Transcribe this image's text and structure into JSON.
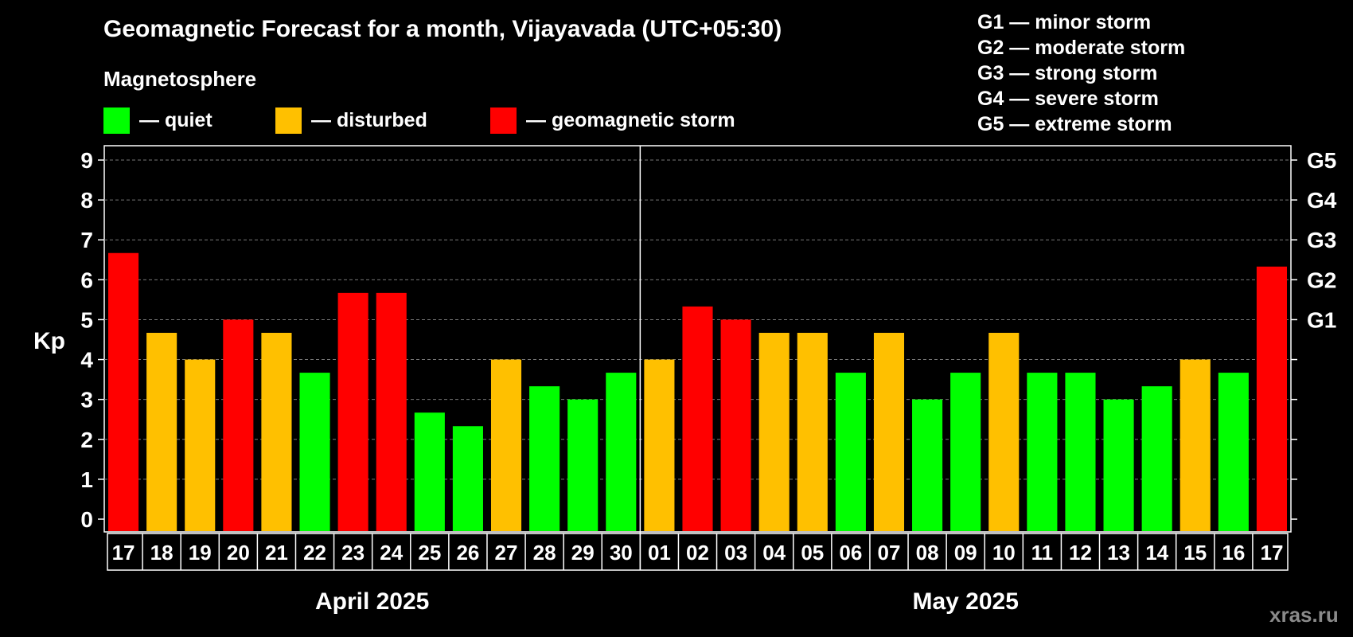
{
  "header": {
    "title": "Geomagnetic Forecast for a month, Vijayavada (UTC+05:30)",
    "subtitle": "Magnetosphere"
  },
  "legend": [
    {
      "label": "— quiet",
      "color": "#00ff00"
    },
    {
      "label": "— disturbed",
      "color": "#ffc000"
    },
    {
      "label": "— geomagnetic storm",
      "color": "#ff0000"
    }
  ],
  "storm_scale": [
    "G1 — minor storm",
    "G2 — moderate storm",
    "G3 — strong storm",
    "G4 — severe storm",
    "G5 — extreme storm"
  ],
  "watermark": "xras.ru",
  "chart_data": {
    "type": "bar",
    "ylabel": "Kp",
    "ylim": [
      0,
      9
    ],
    "yticks": [
      "0",
      "1",
      "2",
      "3",
      "4",
      "5",
      "6",
      "7",
      "8",
      "9"
    ],
    "right_axis_labels": [
      {
        "label": "G1",
        "value": 5
      },
      {
        "label": "G2",
        "value": 6
      },
      {
        "label": "G3",
        "value": 7
      },
      {
        "label": "G4",
        "value": 8
      },
      {
        "label": "G5",
        "value": 9
      }
    ],
    "grid": true,
    "months": [
      {
        "label": "April 2025",
        "start": 0,
        "count": 14
      },
      {
        "label": "May 2025",
        "start": 14,
        "count": 17
      }
    ],
    "categories": [
      "17",
      "18",
      "19",
      "20",
      "21",
      "22",
      "23",
      "24",
      "25",
      "26",
      "27",
      "28",
      "29",
      "30",
      "01",
      "02",
      "03",
      "04",
      "05",
      "06",
      "07",
      "08",
      "09",
      "10",
      "11",
      "12",
      "13",
      "14",
      "15",
      "16",
      "17"
    ],
    "values": [
      6.67,
      4.67,
      4.0,
      5.0,
      4.67,
      3.67,
      5.67,
      5.67,
      2.67,
      2.33,
      4.0,
      3.33,
      3.0,
      3.67,
      4.0,
      5.33,
      5.0,
      4.67,
      4.67,
      3.67,
      4.67,
      3.0,
      3.67,
      4.67,
      3.67,
      3.67,
      3.0,
      3.33,
      4.0,
      3.67,
      6.33
    ],
    "colors": {
      "quiet": "#00ff00",
      "disturbed": "#ffc000",
      "storm": "#ff0000"
    },
    "thresholds": {
      "disturbed": 4,
      "storm": 5
    }
  }
}
